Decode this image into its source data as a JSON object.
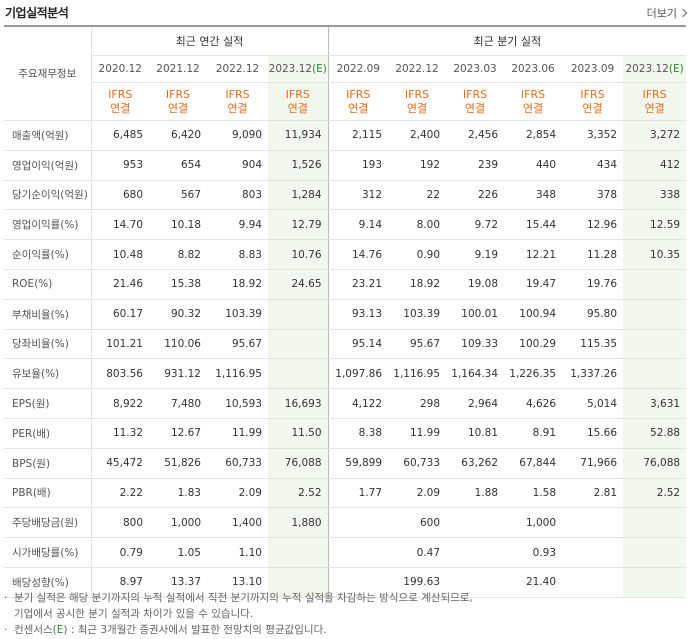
{
  "title": "기업실적분석",
  "more_label": "더보기",
  "header": {
    "corner_label": "주요재무정보",
    "annual_label": "최근 연간 실적",
    "quarter_label": "최근 분기 실적",
    "periods": [
      {
        "date": "2020.12",
        "est": ""
      },
      {
        "date": "2021.12",
        "est": ""
      },
      {
        "date": "2022.12",
        "est": ""
      },
      {
        "date": "2023.12",
        "est": "(E)"
      },
      {
        "date": "2022.09",
        "est": ""
      },
      {
        "date": "2022.12",
        "est": ""
      },
      {
        "date": "2023.03",
        "est": ""
      },
      {
        "date": "2023.06",
        "est": ""
      },
      {
        "date": "2023.09",
        "est": ""
      },
      {
        "date": "2023.12",
        "est": "(E)"
      }
    ],
    "basis_top": "IFRS",
    "basis_bottom": "연결"
  },
  "rows": [
    {
      "label": "매출액(억원)",
      "values": [
        "6,485",
        "6,420",
        "9,090",
        "11,934",
        "2,115",
        "2,400",
        "2,456",
        "2,854",
        "3,352",
        "3,272"
      ]
    },
    {
      "label": "영업이익(억원)",
      "values": [
        "953",
        "654",
        "904",
        "1,526",
        "193",
        "192",
        "239",
        "440",
        "434",
        "412"
      ]
    },
    {
      "label": "당기순이익(억원)",
      "values": [
        "680",
        "567",
        "803",
        "1,284",
        "312",
        "22",
        "226",
        "348",
        "378",
        "338"
      ]
    },
    {
      "label": "영업이익률(%)",
      "values": [
        "14.70",
        "10.18",
        "9.94",
        "12.79",
        "9.14",
        "8.00",
        "9.72",
        "15.44",
        "12.96",
        "12.59"
      ]
    },
    {
      "label": "순이익률(%)",
      "values": [
        "10.48",
        "8.82",
        "8.83",
        "10.76",
        "14.76",
        "0.90",
        "9.19",
        "12.21",
        "11.28",
        "10.35"
      ]
    },
    {
      "label": "ROE(%)",
      "values": [
        "21.46",
        "15.38",
        "18.92",
        "24.65",
        "23.21",
        "18.92",
        "19.08",
        "19.47",
        "19.76",
        ""
      ]
    },
    {
      "label": "부채비율(%)",
      "values": [
        "60.17",
        "90.32",
        "103.39",
        "",
        "93.13",
        "103.39",
        "100.01",
        "100.94",
        "95.80",
        ""
      ]
    },
    {
      "label": "당좌비율(%)",
      "values": [
        "101.21",
        "110.06",
        "95.67",
        "",
        "95.14",
        "95.67",
        "109.33",
        "100.29",
        "115.35",
        ""
      ]
    },
    {
      "label": "유보율(%)",
      "values": [
        "803.56",
        "931.12",
        "1,116.95",
        "",
        "1,097.86",
        "1,116.95",
        "1,164.34",
        "1,226.35",
        "1,337.26",
        ""
      ]
    },
    {
      "label": "EPS(원)",
      "values": [
        "8,922",
        "7,480",
        "10,593",
        "16,693",
        "4,122",
        "298",
        "2,964",
        "4,626",
        "5,014",
        "3,631"
      ]
    },
    {
      "label": "PER(배)",
      "values": [
        "11.32",
        "12.67",
        "11.99",
        "11.50",
        "8.38",
        "11.99",
        "10.81",
        "8.91",
        "15.66",
        "52.88"
      ]
    },
    {
      "label": "BPS(원)",
      "values": [
        "45,472",
        "51,826",
        "60,733",
        "76,088",
        "59,899",
        "60,733",
        "63,262",
        "67,844",
        "71,966",
        "76,088"
      ]
    },
    {
      "label": "PBR(배)",
      "values": [
        "2.22",
        "1.83",
        "2.09",
        "2.52",
        "1.77",
        "2.09",
        "1.88",
        "1.58",
        "2.81",
        "2.52"
      ]
    },
    {
      "label": "주당배당금(원)",
      "values": [
        "800",
        "1,000",
        "1,400",
        "1,880",
        "",
        "600",
        "",
        "1,000",
        "",
        ""
      ]
    },
    {
      "label": "시가배당률(%)",
      "values": [
        "0.79",
        "1.05",
        "1.10",
        "",
        "",
        "0.47",
        "",
        "0.93",
        "",
        ""
      ]
    },
    {
      "label": "배당성향(%)",
      "values": [
        "8.97",
        "13.37",
        "13.10",
        "",
        "",
        "199.63",
        "",
        "21.40",
        "",
        ""
      ]
    }
  ],
  "footnotes": [
    {
      "mark": "·",
      "text": "분기 실적은 해당 분기까지의 누적 실적에서 직전 분기까지의 누적 실적을 차감하는 방식으로 계산되므로,"
    },
    {
      "mark": "",
      "text": "기업에서 공시한 분기 실적과 차이가 있을 수 있습니다."
    },
    {
      "mark": "·",
      "text": "컨센서스(",
      "e": "E",
      "text2": ") : 최근 3개월간 증권사에서 발표한 전망치의 평균값입니다."
    }
  ]
}
